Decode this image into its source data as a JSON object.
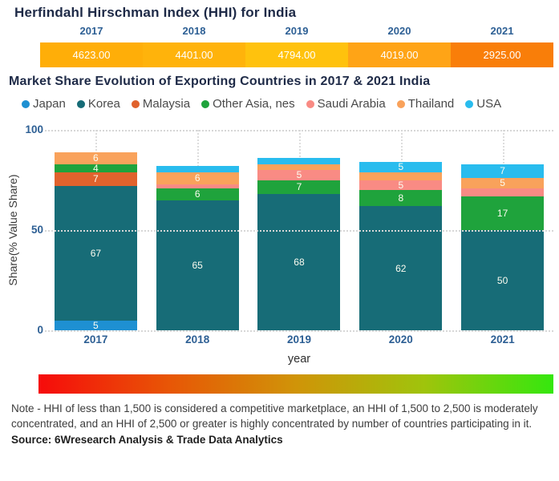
{
  "chart_data": [
    {
      "type": "heatmap",
      "title": "Herfindahl Hirschman Index (HHI) for India",
      "categories": [
        "2017",
        "2018",
        "2019",
        "2020",
        "2021"
      ],
      "values": [
        4623.0,
        4401.0,
        4794.0,
        4019.0,
        2925.0
      ],
      "value_labels": [
        "4623.00",
        "4401.00",
        "4794.00",
        "4019.00",
        "2925.00"
      ],
      "cell_colors": [
        "#FFAE08",
        "#FFB30B",
        "#FFC20D",
        "#FFA416",
        "#F97E09"
      ],
      "year_label_color": "#2E6095"
    },
    {
      "type": "bar",
      "stacked": true,
      "title": "Market Share Evolution of Exporting Countries in 2017 & 2021 India",
      "categories": [
        "2017",
        "2018",
        "2019",
        "2020",
        "2021"
      ],
      "series": [
        {
          "name": "Japan",
          "color": "#1E90D2",
          "values": [
            5,
            0,
            0,
            0,
            0
          ],
          "labels": [
            "5",
            "",
            "",
            "",
            ""
          ]
        },
        {
          "name": "Korea",
          "color": "#176C77",
          "values": [
            67,
            65,
            68,
            62,
            50
          ],
          "labels": [
            "67",
            "65",
            "68",
            "62",
            "50"
          ]
        },
        {
          "name": "Malaysia",
          "color": "#E0622D",
          "values": [
            7,
            0,
            0,
            0,
            0
          ],
          "labels": [
            "7",
            "",
            "",
            "",
            ""
          ]
        },
        {
          "name": "Other Asia, nes",
          "color": "#1FA33C",
          "values": [
            4,
            6,
            7,
            8,
            17
          ],
          "labels": [
            "4",
            "6",
            "7",
            "8",
            "17"
          ]
        },
        {
          "name": "Saudi Arabia",
          "color": "#F98B84",
          "values": [
            0,
            2,
            5,
            5,
            4
          ],
          "labels": [
            "",
            "",
            "5",
            "5",
            ""
          ]
        },
        {
          "name": "Thailand",
          "color": "#F9A25B",
          "values": [
            6,
            6,
            3,
            4,
            5
          ],
          "labels": [
            "6",
            "6",
            "",
            "",
            "5"
          ]
        },
        {
          "name": "USA",
          "color": "#29BCEE",
          "values": [
            0,
            3,
            3,
            5,
            7
          ],
          "labels": [
            "",
            "",
            "",
            "5",
            "7"
          ]
        }
      ],
      "xlabel": "year",
      "ylabel": "Share(% Value Share)",
      "ylim": [
        0,
        100
      ],
      "yticks": [
        "0",
        "50",
        "100"
      ],
      "legend_position": "top",
      "grid": "dotted"
    }
  ],
  "gradient_legend": {
    "stops": [
      "#F60B0B",
      "#E85506",
      "#D09408",
      "#9FC40C",
      "#35E70E"
    ]
  },
  "note": "Note - HHI of less than 1,500 is considered a competitive marketplace, an HHI of 1,500 to 2,500 is moderately concentrated, and an HHI of 2,500 or greater is highly concentrated by number of countries participating in it.",
  "source": "Source: 6Wresearch Analysis & Trade Data Analytics"
}
